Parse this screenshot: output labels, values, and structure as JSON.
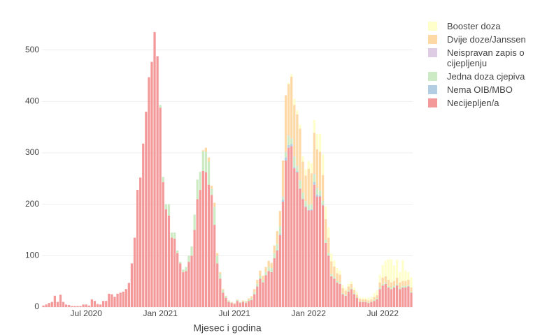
{
  "chart_data": {
    "type": "stacked_bar",
    "x_label": "Mjesec i godina",
    "categories": [
      null,
      null,
      null,
      null,
      null,
      null,
      null,
      null,
      null,
      null,
      null,
      null,
      null,
      null,
      null,
      "Jul 2020",
      null,
      null,
      null,
      null,
      null,
      null,
      null,
      null,
      null,
      null,
      null,
      null,
      null,
      null,
      null,
      null,
      null,
      null,
      null,
      null,
      null,
      null,
      null,
      null,
      null,
      "Jan 2021",
      null,
      null,
      null,
      null,
      null,
      null,
      null,
      null,
      null,
      null,
      null,
      null,
      null,
      null,
      null,
      null,
      null,
      null,
      null,
      null,
      null,
      null,
      null,
      null,
      null,
      "Jul 2021",
      null,
      null,
      null,
      null,
      null,
      null,
      null,
      null,
      null,
      null,
      null,
      null,
      null,
      null,
      null,
      null,
      null,
      null,
      null,
      null,
      null,
      null,
      null,
      null,
      null,
      "Jan 2022",
      null,
      null,
      null,
      null,
      null,
      null,
      null,
      null,
      null,
      null,
      null,
      null,
      null,
      null,
      null,
      null,
      null,
      null,
      null,
      null,
      null,
      null,
      null,
      null,
      null,
      "Jul 2022",
      null,
      null,
      null,
      null,
      null,
      null,
      null,
      null,
      null,
      null
    ],
    "ylim": [
      0,
      543
    ],
    "yticks": [
      0,
      100,
      200,
      300,
      400,
      500
    ],
    "grid": true,
    "series": [
      {
        "name": "Necijepljen/a",
        "color": "#f4999a",
        "values": [
          3,
          5,
          8,
          10,
          22,
          10,
          24,
          10,
          5,
          4,
          2,
          2,
          2,
          2,
          5,
          5,
          3,
          15,
          12,
          6,
          5,
          12,
          12,
          26,
          25,
          20,
          26,
          28,
          30,
          35,
          47,
          85,
          135,
          228,
          252,
          318,
          380,
          447,
          477,
          535,
          488,
          388,
          243,
          190,
          178,
          135,
          133,
          105,
          85,
          68,
          70,
          88,
          100,
          150,
          210,
          228,
          265,
          262,
          238,
          218,
          160,
          85,
          55,
          28,
          18,
          10,
          8,
          6,
          12,
          8,
          10,
          8,
          12,
          14,
          25,
          40,
          55,
          48,
          62,
          70,
          68,
          95,
          110,
          140,
          205,
          285,
          310,
          313,
          270,
          262,
          230,
          210,
          195,
          188,
          188,
          238,
          215,
          215,
          198,
          125,
          100,
          60,
          55,
          48,
          45,
          25,
          22,
          30,
          35,
          25,
          18,
          10,
          10,
          10,
          8,
          10,
          12,
          15,
          35,
          42,
          45,
          38,
          35,
          38,
          42,
          35,
          38,
          38,
          40,
          28
        ]
      },
      {
        "name": "Nema OIB/MBO",
        "color": "#b3cde3",
        "values": [
          0,
          0,
          0,
          0,
          0,
          0,
          0,
          0,
          0,
          0,
          0,
          0,
          0,
          0,
          0,
          0,
          0,
          0,
          0,
          0,
          0,
          0,
          0,
          0,
          0,
          0,
          0,
          0,
          0,
          0,
          0,
          0,
          0,
          0,
          0,
          0,
          0,
          0,
          0,
          0,
          0,
          0,
          0,
          0,
          0,
          0,
          0,
          0,
          0,
          0,
          0,
          0,
          0,
          0,
          0,
          0,
          0,
          0,
          0,
          0,
          0,
          0,
          0,
          0,
          0,
          0,
          0,
          0,
          0,
          0,
          0,
          0,
          0,
          0,
          0,
          0,
          0,
          0,
          0,
          0,
          0,
          0,
          1,
          2,
          4,
          6,
          5,
          4,
          2,
          2,
          1,
          1,
          1,
          1,
          2,
          5,
          4,
          2,
          1,
          0,
          0,
          0,
          0,
          0,
          0,
          0,
          0,
          0,
          0,
          0,
          0,
          0,
          0,
          0,
          0,
          0,
          0,
          0,
          0,
          0,
          0,
          0,
          0,
          0,
          0,
          0,
          0,
          0,
          0,
          0
        ]
      },
      {
        "name": "Jedna doza cjepiva",
        "color": "#ccebc5",
        "values": [
          0,
          0,
          0,
          0,
          0,
          0,
          0,
          0,
          0,
          0,
          0,
          0,
          0,
          0,
          0,
          0,
          0,
          0,
          0,
          0,
          0,
          0,
          0,
          0,
          0,
          0,
          0,
          0,
          0,
          0,
          0,
          0,
          0,
          0,
          0,
          0,
          0,
          0,
          0,
          0,
          0,
          5,
          10,
          10,
          22,
          10,
          12,
          5,
          3,
          5,
          8,
          12,
          18,
          30,
          38,
          35,
          38,
          40,
          45,
          12,
          35,
          15,
          10,
          5,
          3,
          2,
          1,
          1,
          2,
          1,
          1,
          2,
          2,
          3,
          4,
          5,
          6,
          5,
          6,
          8,
          8,
          10,
          12,
          15,
          5,
          10,
          18,
          10,
          20,
          10,
          15,
          12,
          10,
          10,
          10,
          15,
          12,
          10,
          8,
          6,
          5,
          4,
          4,
          3,
          3,
          2,
          2,
          2,
          2,
          2,
          1,
          1,
          1,
          1,
          1,
          1,
          2,
          2,
          3,
          3,
          3,
          3,
          3,
          3,
          3,
          3,
          3,
          3,
          3,
          2
        ]
      },
      {
        "name": "Neispravan zapis o cijepljenju",
        "color": "#decbe4",
        "values": [
          0,
          0,
          0,
          0,
          0,
          0,
          0,
          0,
          0,
          0,
          0,
          0,
          0,
          0,
          0,
          0,
          0,
          0,
          0,
          0,
          0,
          0,
          0,
          0,
          0,
          0,
          0,
          0,
          0,
          0,
          0,
          0,
          0,
          0,
          0,
          0,
          0,
          0,
          0,
          0,
          0,
          0,
          0,
          0,
          0,
          0,
          0,
          0,
          0,
          0,
          0,
          0,
          0,
          0,
          0,
          0,
          0,
          0,
          0,
          0,
          0,
          0,
          0,
          0,
          0,
          0,
          0,
          0,
          0,
          0,
          0,
          0,
          0,
          0,
          0,
          0,
          0,
          0,
          0,
          0,
          0,
          0,
          0,
          0,
          1,
          1,
          1,
          1,
          1,
          1,
          1,
          0,
          0,
          0,
          0,
          1,
          1,
          0,
          0,
          0,
          0,
          0,
          0,
          0,
          0,
          0,
          0,
          0,
          0,
          0,
          0,
          0,
          0,
          0,
          0,
          0,
          0,
          0,
          0,
          0,
          0,
          0,
          0,
          0,
          0,
          0,
          0,
          0,
          0,
          0
        ]
      },
      {
        "name": "Dvije doze/Janssen",
        "color": "#fed9a6",
        "values": [
          0,
          0,
          0,
          0,
          0,
          0,
          0,
          0,
          0,
          0,
          0,
          0,
          0,
          0,
          0,
          0,
          0,
          0,
          0,
          0,
          0,
          0,
          0,
          0,
          0,
          0,
          0,
          0,
          0,
          0,
          0,
          0,
          0,
          0,
          0,
          0,
          0,
          0,
          0,
          0,
          0,
          0,
          0,
          0,
          0,
          0,
          0,
          0,
          0,
          0,
          0,
          0,
          0,
          0,
          0,
          0,
          2,
          8,
          8,
          6,
          8,
          5,
          3,
          2,
          1,
          1,
          1,
          1,
          1,
          1,
          2,
          2,
          3,
          4,
          6,
          8,
          10,
          8,
          10,
          12,
          10,
          15,
          25,
          30,
          70,
          110,
          100,
          120,
          100,
          100,
          100,
          60,
          50,
          70,
          60,
          80,
          75,
          75,
          50,
          40,
          30,
          25,
          20,
          15,
          15,
          10,
          8,
          8,
          8,
          6,
          5,
          5,
          4,
          4,
          4,
          4,
          5,
          6,
          10,
          12,
          12,
          12,
          10,
          10,
          12,
          10,
          10,
          10,
          10,
          8
        ]
      },
      {
        "name": "Booster doza",
        "color": "#ffffcc",
        "values": [
          0,
          0,
          0,
          0,
          0,
          0,
          0,
          0,
          0,
          0,
          0,
          0,
          0,
          0,
          0,
          0,
          0,
          0,
          0,
          0,
          0,
          0,
          0,
          0,
          0,
          0,
          0,
          0,
          0,
          0,
          0,
          0,
          0,
          0,
          0,
          0,
          0,
          0,
          0,
          0,
          0,
          0,
          0,
          0,
          0,
          0,
          0,
          0,
          0,
          0,
          0,
          0,
          0,
          0,
          0,
          0,
          0,
          0,
          0,
          0,
          0,
          0,
          0,
          0,
          0,
          0,
          0,
          0,
          0,
          0,
          0,
          0,
          0,
          0,
          0,
          0,
          0,
          0,
          0,
          0,
          0,
          0,
          0,
          0,
          0,
          0,
          2,
          5,
          12,
          8,
          8,
          10,
          12,
          15,
          20,
          25,
          30,
          35,
          40,
          25,
          20,
          15,
          12,
          10,
          8,
          6,
          5,
          5,
          5,
          5,
          5,
          3,
          3,
          3,
          5,
          5,
          8,
          10,
          15,
          25,
          30,
          40,
          45,
          30,
          35,
          20,
          40,
          20,
          15,
          20
        ]
      }
    ]
  }
}
